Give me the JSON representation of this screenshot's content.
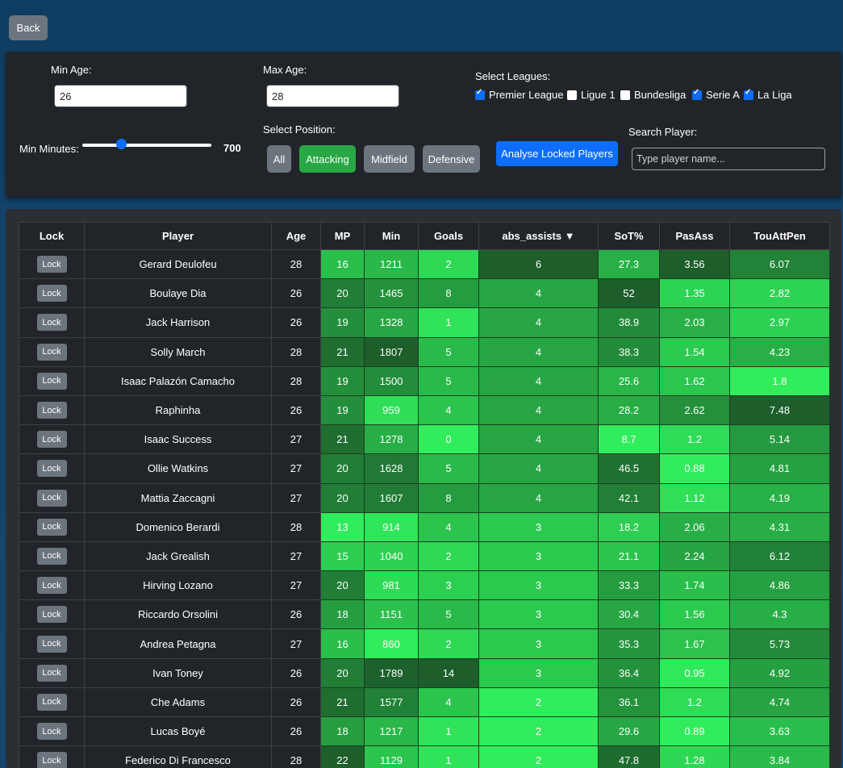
{
  "back_label": "Back",
  "filters": {
    "min_age_label": "Min Age:",
    "min_age_value": "26",
    "max_age_label": "Max Age:",
    "max_age_value": "28",
    "min_minutes_label": "Min Minutes:",
    "min_minutes_value": "700",
    "min_minutes_slider_fraction": 0.3,
    "select_position_label": "Select Position:",
    "positions": [
      {
        "label": "All",
        "active": false
      },
      {
        "label": "Attacking",
        "active": true
      },
      {
        "label": "Midfield",
        "active": false
      },
      {
        "label": "Defensive",
        "active": false
      }
    ],
    "analyse_label": "Analyse Locked Players",
    "select_leagues_label": "Select Leagues:",
    "leagues": [
      {
        "label": "Premier League",
        "checked": true
      },
      {
        "label": "Ligue 1",
        "checked": false
      },
      {
        "label": "Bundesliga",
        "checked": false
      },
      {
        "label": "Serie A",
        "checked": true
      },
      {
        "label": "La Liga",
        "checked": true
      }
    ],
    "search_label": "Search Player:",
    "search_placeholder": "Type player name..."
  },
  "table": {
    "lock_label": "Lock",
    "headers": [
      "Lock",
      "Player",
      "Age",
      "MP",
      "Min",
      "Goals",
      "abs_assists ▼",
      "SoT%",
      "PasAss",
      "TouAttPen"
    ],
    "rows": [
      [
        "Gerard Deulofeu",
        "28",
        "16",
        "1211",
        "2",
        "6",
        "27.3",
        "3.56",
        "6.07"
      ],
      [
        "Boulaye Dia",
        "26",
        "20",
        "1465",
        "8",
        "4",
        "52",
        "1.35",
        "2.82"
      ],
      [
        "Jack Harrison",
        "26",
        "19",
        "1328",
        "1",
        "4",
        "38.9",
        "2.03",
        "2.97"
      ],
      [
        "Solly March",
        "28",
        "21",
        "1807",
        "5",
        "4",
        "38.3",
        "1.54",
        "4.23"
      ],
      [
        "Isaac Palazón Camacho",
        "28",
        "19",
        "1500",
        "5",
        "4",
        "25.6",
        "1.62",
        "1.8"
      ],
      [
        "Raphinha",
        "26",
        "19",
        "959",
        "4",
        "4",
        "28.2",
        "2.62",
        "7.48"
      ],
      [
        "Isaac Success",
        "27",
        "21",
        "1278",
        "0",
        "4",
        "8.7",
        "1.2",
        "5.14"
      ],
      [
        "Ollie Watkins",
        "27",
        "20",
        "1628",
        "5",
        "4",
        "46.5",
        "0.88",
        "4.81"
      ],
      [
        "Mattia Zaccagni",
        "27",
        "20",
        "1607",
        "8",
        "4",
        "42.1",
        "1.12",
        "4.19"
      ],
      [
        "Domenico Berardi",
        "28",
        "13",
        "914",
        "4",
        "3",
        "18.2",
        "2.06",
        "4.31"
      ],
      [
        "Jack Grealish",
        "27",
        "15",
        "1040",
        "2",
        "3",
        "21.1",
        "2.24",
        "6.12"
      ],
      [
        "Hirving Lozano",
        "27",
        "20",
        "981",
        "3",
        "3",
        "33.3",
        "1.74",
        "4.86"
      ],
      [
        "Riccardo Orsolini",
        "26",
        "18",
        "1151",
        "5",
        "3",
        "30.4",
        "1.56",
        "4.3"
      ],
      [
        "Andrea Petagna",
        "27",
        "16",
        "860",
        "2",
        "3",
        "35.3",
        "1.67",
        "5.73"
      ],
      [
        "Ivan Toney",
        "26",
        "20",
        "1789",
        "14",
        "3",
        "36.4",
        "0.95",
        "4.92"
      ],
      [
        "Che Adams",
        "26",
        "21",
        "1577",
        "4",
        "2",
        "36.1",
        "1.2",
        "4.74"
      ],
      [
        "Lucas Boyé",
        "26",
        "18",
        "1217",
        "1",
        "2",
        "29.6",
        "0.89",
        "3.63"
      ],
      [
        "Federico Di Francesco",
        "28",
        "22",
        "1129",
        "1",
        "2",
        "47.8",
        "1.28",
        "3.84"
      ]
    ]
  },
  "colors": {
    "heat_light": "#33fb60",
    "heat_dark": "#1a4d25",
    "button_gray": "#6c757d",
    "button_green": "#28a745",
    "button_blue": "#0d6efd",
    "panel_dark": "#212529"
  }
}
